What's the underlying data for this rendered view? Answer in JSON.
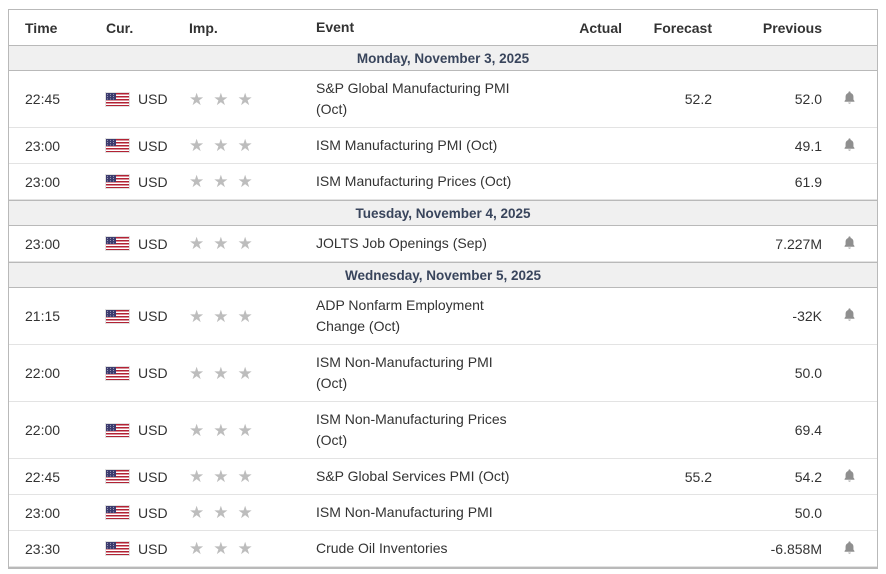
{
  "header": {
    "time": "Time",
    "currency": "Cur.",
    "importance": "Imp.",
    "event": "Event",
    "actual": "Actual",
    "forecast": "Forecast",
    "previous": "Previous"
  },
  "icons": {
    "importance": "star-icon",
    "star_glyph": "★",
    "alert": "bell-icon",
    "currency_flag": "us-flag-icon"
  },
  "colors": {
    "date_row_bg": "#f0f0f0",
    "date_row_text": "#39455c",
    "outer_border": "#b9b9b9",
    "row_divider": "#e3e3e3",
    "body_text": "#333333",
    "star": "#bdbdbd",
    "bell": "#8f8f8f",
    "flag_red": "#b22234",
    "flag_blue": "#3c3b6e"
  },
  "days": [
    {
      "date": "Monday, November 3, 2025",
      "events": [
        {
          "time": "22:45",
          "currency": "USD",
          "importance": 3,
          "event": "S&P Global Manufacturing PMI\n(Oct)",
          "actual": "",
          "forecast": "52.2",
          "previous": "52.0",
          "alert": true
        },
        {
          "time": "23:00",
          "currency": "USD",
          "importance": 3,
          "event": "ISM Manufacturing PMI (Oct)",
          "actual": "",
          "forecast": "",
          "previous": "49.1",
          "alert": true
        },
        {
          "time": "23:00",
          "currency": "USD",
          "importance": 3,
          "event": "ISM Manufacturing Prices (Oct)",
          "actual": "",
          "forecast": "",
          "previous": "61.9",
          "alert": false
        }
      ]
    },
    {
      "date": "Tuesday, November 4, 2025",
      "events": [
        {
          "time": "23:00",
          "currency": "USD",
          "importance": 3,
          "event": "JOLTS Job Openings (Sep)",
          "actual": "",
          "forecast": "",
          "previous": "7.227M",
          "alert": true
        }
      ]
    },
    {
      "date": "Wednesday, November 5, 2025",
      "events": [
        {
          "time": "21:15",
          "currency": "USD",
          "importance": 3,
          "event": "ADP Nonfarm Employment\nChange (Oct)",
          "actual": "",
          "forecast": "",
          "previous": "-32K",
          "alert": true
        },
        {
          "time": "22:00",
          "currency": "USD",
          "importance": 3,
          "event": "ISM Non-Manufacturing PMI\n(Oct)",
          "actual": "",
          "forecast": "",
          "previous": "50.0",
          "alert": false
        },
        {
          "time": "22:00",
          "currency": "USD",
          "importance": 3,
          "event": "ISM Non-Manufacturing Prices\n(Oct)",
          "actual": "",
          "forecast": "",
          "previous": "69.4",
          "alert": false
        },
        {
          "time": "22:45",
          "currency": "USD",
          "importance": 3,
          "event": "S&P Global Services PMI (Oct)",
          "actual": "",
          "forecast": "55.2",
          "previous": "54.2",
          "alert": true
        },
        {
          "time": "23:00",
          "currency": "USD",
          "importance": 3,
          "event": "ISM Non-Manufacturing PMI",
          "actual": "",
          "forecast": "",
          "previous": "50.0",
          "alert": false
        },
        {
          "time": "23:30",
          "currency": "USD",
          "importance": 3,
          "event": "Crude Oil Inventories",
          "actual": "",
          "forecast": "",
          "previous": "-6.858M",
          "alert": true
        }
      ]
    }
  ]
}
